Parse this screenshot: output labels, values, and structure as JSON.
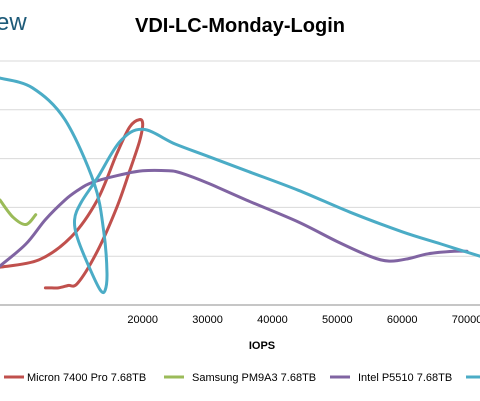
{
  "logo_text": "ew",
  "chart_data": {
    "type": "line",
    "title": "VDI-LC-Monday-Login",
    "xlabel": "IOPS",
    "ylabel": "",
    "xlim": [
      -2000,
      72000
    ],
    "ylim": [
      0,
      1
    ],
    "x_ticks": [
      20000,
      30000,
      40000,
      50000,
      60000,
      70000
    ],
    "x_tick_labels": [
      "20000",
      "30000",
      "40000",
      "50000",
      "60000",
      "70000"
    ],
    "y_gridlines": [
      0.2,
      0.4,
      0.6,
      0.8,
      1.0
    ],
    "grid": true,
    "legend_position": "bottom",
    "series": [
      {
        "name": "Micron 7400 Pro 7.68TB",
        "color": "#c0504d",
        "x": [
          -2000,
          4000,
          9000,
          13000,
          16000,
          18000,
          19500,
          20000,
          19500,
          18000,
          16000,
          13000,
          10000,
          8500,
          7000,
          6000,
          5000
        ],
        "y": [
          0.155,
          0.185,
          0.28,
          0.43,
          0.62,
          0.73,
          0.76,
          0.74,
          0.67,
          0.55,
          0.4,
          0.22,
          0.09,
          0.08,
          0.07,
          0.07,
          0.07
        ]
      },
      {
        "name": "Samsung PM9A3 7.68TB",
        "color": "#9bbb59",
        "x": [
          -2000,
          0,
          2000,
          3500
        ],
        "y": [
          0.43,
          0.36,
          0.33,
          0.37
        ]
      },
      {
        "name": "Intel P5510 7.68TB",
        "color": "#8064a2",
        "x": [
          -2000,
          2000,
          5000,
          8000,
          10000,
          12000,
          16000,
          20000,
          24000,
          26000,
          30000,
          36000,
          44000,
          50000,
          55000,
          58000,
          61000,
          64000,
          68000,
          70000
        ],
        "y": [
          0.16,
          0.25,
          0.35,
          0.43,
          0.47,
          0.5,
          0.53,
          0.55,
          0.55,
          0.54,
          0.5,
          0.43,
          0.34,
          0.26,
          0.2,
          0.18,
          0.19,
          0.21,
          0.22,
          0.22
        ]
      },
      {
        "name": "",
        "color": "#4bacc6",
        "x": [
          -2000,
          3000,
          8000,
          12500,
          14000,
          14500,
          14200,
          13500,
          12000,
          10000,
          9500,
          10500,
          13000,
          16500,
          20000,
          25000,
          30000,
          36000,
          44000,
          52000,
          60000,
          66000,
          72000
        ],
        "y": [
          0.93,
          0.89,
          0.76,
          0.5,
          0.3,
          0.13,
          0.06,
          0.06,
          0.14,
          0.27,
          0.35,
          0.42,
          0.52,
          0.67,
          0.72,
          0.66,
          0.61,
          0.55,
          0.47,
          0.38,
          0.3,
          0.25,
          0.2
        ]
      }
    ]
  }
}
